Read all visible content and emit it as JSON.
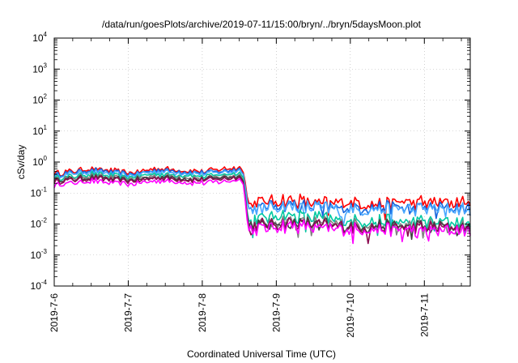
{
  "chart_data": {
    "type": "line",
    "title": "/data/run/goesPlots/archive/2019-07-11/15:00/bryn/../bryn/5daysMoon.plot",
    "xlabel": "Coordinated Universal Time (UTC)",
    "ylabel": "cSv/day",
    "x_ticks": [
      {
        "label": "2019-7-6",
        "day": 0
      },
      {
        "label": "2019-7-7",
        "day": 1
      },
      {
        "label": "2019-7-8",
        "day": 2
      },
      {
        "label": "2019-7-9",
        "day": 3
      },
      {
        "label": "2019-7-10",
        "day": 4
      },
      {
        "label": "2019-7-11",
        "day": 5
      }
    ],
    "xlim_days": [
      0,
      5.62
    ],
    "y_scale": "log",
    "ylim": [
      0.0001,
      10000
    ],
    "y_ticks": [
      {
        "base": "10",
        "exp": "-4",
        "value": 0.0001
      },
      {
        "base": "10",
        "exp": "-3",
        "value": 0.001
      },
      {
        "base": "10",
        "exp": "-2",
        "value": 0.01
      },
      {
        "base": "10",
        "exp": "-1",
        "value": 0.1
      },
      {
        "base": "10",
        "exp": "0",
        "value": 1
      },
      {
        "base": "10",
        "exp": "1",
        "value": 10
      },
      {
        "base": "10",
        "exp": "2",
        "value": 100
      },
      {
        "base": "10",
        "exp": "3",
        "value": 1000
      },
      {
        "base": "10",
        "exp": "4",
        "value": 10000
      }
    ],
    "grid": true,
    "series": [
      {
        "color": "#ff0000",
        "level": [
          0.42,
          0.62,
          0.45,
          0.62,
          0.5,
          0.68,
          0.045,
          0.06,
          0.045,
          0.05,
          0.05,
          0.05
        ]
      },
      {
        "color": "#1464dc",
        "level": [
          0.38,
          0.55,
          0.4,
          0.55,
          0.45,
          0.6,
          0.032,
          0.045,
          0.032,
          0.035,
          0.035,
          0.032
        ]
      },
      {
        "color": "#4aa8ff",
        "level": [
          0.35,
          0.5,
          0.37,
          0.5,
          0.42,
          0.55,
          0.028,
          0.04,
          0.03,
          0.03,
          0.03,
          0.03
        ]
      },
      {
        "color": "#00c8a0",
        "level": [
          0.3,
          0.42,
          0.32,
          0.42,
          0.35,
          0.45,
          0.013,
          0.02,
          0.014,
          0.012,
          0.012,
          0.011
        ]
      },
      {
        "color": "#808080",
        "level": [
          0.27,
          0.36,
          0.28,
          0.36,
          0.3,
          0.38,
          0.0095,
          0.013,
          0.0095,
          0.009,
          0.009,
          0.0085
        ]
      },
      {
        "color": "#404040",
        "level": [
          0.25,
          0.33,
          0.26,
          0.33,
          0.28,
          0.35,
          0.0088,
          0.012,
          0.0088,
          0.0083,
          0.0083,
          0.008
        ]
      },
      {
        "color": "#8b0a50",
        "level": [
          0.23,
          0.3,
          0.24,
          0.3,
          0.26,
          0.32,
          0.008,
          0.011,
          0.008,
          0.0076,
          0.0076,
          0.0072
        ]
      },
      {
        "color": "#ff00ff",
        "level": [
          0.18,
          0.25,
          0.19,
          0.25,
          0.21,
          0.27,
          0.0065,
          0.009,
          0.0068,
          0.0062,
          0.0062,
          0.006
        ]
      }
    ],
    "level_days": [
      0,
      0.5,
      1.0,
      1.4,
      2.0,
      2.55,
      2.62,
      3.1,
      3.8,
      4.5,
      5.0,
      5.62
    ]
  }
}
